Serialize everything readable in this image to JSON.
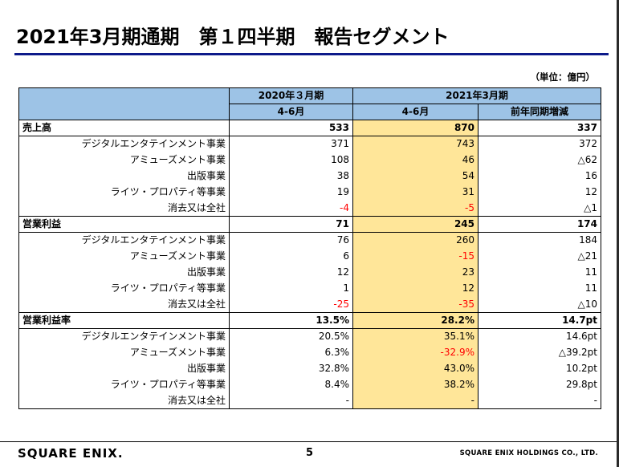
{
  "title": "2021年3月期通期　第１四半期　報告セグメント",
  "unit": "（単位：億円）",
  "headers": {
    "prev_year": "2020年３月期",
    "curr_year": "2021年3月期",
    "prev_period": "4-6月",
    "curr_period": "4-6月",
    "yoy": "前年同期増減"
  },
  "sections": [
    {
      "label": "売上高",
      "total": [
        "533",
        "870",
        "337"
      ],
      "rows": [
        {
          "label": "デジタルエンタテインメント事業",
          "values": [
            "371",
            "743",
            "372"
          ]
        },
        {
          "label": "アミューズメント事業",
          "values": [
            "108",
            "46",
            "△62"
          ]
        },
        {
          "label": "出版事業",
          "values": [
            "38",
            "54",
            "16"
          ]
        },
        {
          "label": "ライツ・プロパティ等事業",
          "values": [
            "19",
            "31",
            "12"
          ]
        },
        {
          "label": "消去又は全社",
          "values": [
            "-4",
            "-5",
            "△1"
          ]
        }
      ]
    },
    {
      "label": "営業利益",
      "total": [
        "71",
        "245",
        "174"
      ],
      "rows": [
        {
          "label": "デジタルエンタテインメント事業",
          "values": [
            "76",
            "260",
            "184"
          ]
        },
        {
          "label": "アミューズメント事業",
          "values": [
            "6",
            "-15",
            "△21"
          ]
        },
        {
          "label": "出版事業",
          "values": [
            "12",
            "23",
            "11"
          ]
        },
        {
          "label": "ライツ・プロパティ等事業",
          "values": [
            "1",
            "12",
            "11"
          ]
        },
        {
          "label": "消去又は全社",
          "values": [
            "-25",
            "-35",
            "△10"
          ]
        }
      ]
    },
    {
      "label": "営業利益率",
      "total": [
        "13.5%",
        "28.2%",
        "14.7pt"
      ],
      "rows": [
        {
          "label": "デジタルエンタテインメント事業",
          "values": [
            "20.5%",
            "35.1%",
            "14.6pt"
          ]
        },
        {
          "label": "アミューズメント事業",
          "values": [
            "6.3%",
            "-32.9%",
            "△39.2pt"
          ]
        },
        {
          "label": "出版事業",
          "values": [
            "32.8%",
            "43.0%",
            "10.2pt"
          ]
        },
        {
          "label": "ライツ・プロパティ等事業",
          "values": [
            "8.4%",
            "38.2%",
            "29.8pt"
          ]
        },
        {
          "label": "消去又は全社",
          "values": [
            "-",
            "-",
            "-"
          ]
        }
      ]
    }
  ],
  "footer": {
    "logo": "SQUARE ENIX.",
    "page": "5",
    "company": "SQUARE ENIX HOLDINGS CO., LTD."
  },
  "colors": {
    "header_blue": "#9dc3e6",
    "highlight_yellow": "#ffe699",
    "negative_red": "#ff0000",
    "title_rule": "#0d1a8a"
  }
}
